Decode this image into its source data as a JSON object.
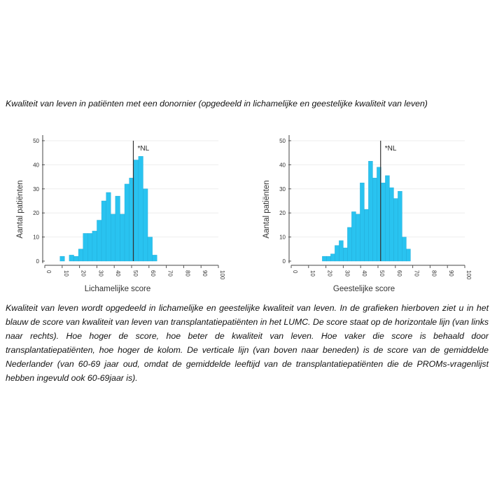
{
  "title": "Kwaliteit van leven in patiënten met een donornier (opgedeeld in lichamelijke en geestelijke kwaliteit van leven)",
  "paragraph": "Kwaliteit van leven wordt opgedeeld in lichamelijke en geestelijke kwaliteit van leven. In de grafieken hierboven ziet u in het blauw de score van kwaliteit van leven van transplantatiepatiënten in het LUMC. De score staat op de horizontale lijn (van links naar rechts). Hoe hoger de score, hoe beter de kwaliteit van leven. Hoe vaker die score is behaald door transplantatiepatiënten, hoe hoger de kolom. De verticale lijn (van boven naar beneden) is de score van de gemiddelde Nederlander (van 60-69 jaar oud, omdat de gemiddelde leeftijd van de transplantatiepatiënten die de PROMs-vragenlijst hebben ingevuld ook 60-69jaar is).",
  "bar_color": "#29c3f0",
  "chart_data": [
    {
      "type": "bar",
      "title": "",
      "xlabel": "Lichamelijke score",
      "ylabel": "Aantal patiënten",
      "xlim": [
        0,
        100
      ],
      "ylim": [
        0,
        50
      ],
      "xticks": [
        0,
        10,
        20,
        30,
        40,
        50,
        60,
        70,
        80,
        90,
        100
      ],
      "yticks": [
        0,
        10,
        20,
        30,
        40,
        50
      ],
      "bin_start": 8.75,
      "bin_width": 2.66,
      "values": [
        2,
        0,
        2.5,
        2,
        5,
        11.5,
        11.5,
        12.5,
        17,
        25,
        28.5,
        19.5,
        27,
        19.5,
        32,
        34.5,
        42,
        43.5,
        30,
        10,
        2.5
      ],
      "reference_line": {
        "x": 51,
        "label": "*NL"
      },
      "grid": true
    },
    {
      "type": "bar",
      "title": "",
      "xlabel": "Geestelijke score",
      "ylabel": "Aantal patiënten",
      "xlim": [
        0,
        100
      ],
      "ylim": [
        0,
        50
      ],
      "xticks": [
        0,
        10,
        20,
        30,
        40,
        50,
        60,
        70,
        80,
        90,
        100
      ],
      "yticks": [
        0,
        10,
        20,
        30,
        40,
        50
      ],
      "bin_start": 17.9,
      "bin_width": 2.42,
      "values": [
        2,
        2,
        3,
        6.5,
        8.5,
        5.5,
        14,
        20.5,
        19.5,
        32.5,
        21.5,
        41.5,
        34.5,
        39,
        32.5,
        35.5,
        30.5,
        26,
        29,
        10,
        5
      ],
      "reference_line": {
        "x": 51.5,
        "label": "*NL"
      },
      "grid": true
    }
  ]
}
